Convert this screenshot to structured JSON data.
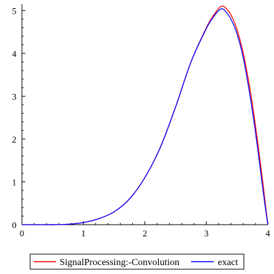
{
  "chart_data": {
    "type": "line",
    "xlim": [
      0,
      4
    ],
    "ylim": [
      0,
      5.15
    ],
    "x_ticks": [
      0,
      1,
      2,
      3,
      4
    ],
    "y_ticks": [
      0,
      1,
      2,
      3,
      4,
      5
    ],
    "x_tick_labels": [
      "0",
      "1",
      "2",
      "3",
      "4"
    ],
    "y_tick_labels": [
      "0",
      "1",
      "2",
      "3",
      "4",
      "5"
    ],
    "grid": false,
    "legend_position": "bottom",
    "series": [
      {
        "name": "SignalProcessing:-Convolution",
        "color": "#ff0000",
        "x": [
          0,
          0.25,
          0.5,
          0.75,
          1.0,
          1.25,
          1.5,
          1.75,
          2.0,
          2.25,
          2.5,
          2.75,
          3.0,
          3.1,
          3.2,
          3.25,
          3.3,
          3.4,
          3.5,
          3.6,
          3.7,
          3.8,
          3.9,
          3.95,
          4.0
        ],
        "y": [
          0,
          0.0,
          0.001,
          0.01,
          0.05,
          0.14,
          0.3,
          0.6,
          1.1,
          1.8,
          2.75,
          3.8,
          4.6,
          4.85,
          5.05,
          5.1,
          5.08,
          4.9,
          4.55,
          4.0,
          3.25,
          2.3,
          1.2,
          0.6,
          0.0
        ]
      },
      {
        "name": "exact",
        "color": "#0000ff",
        "x": [
          0,
          0.25,
          0.5,
          0.75,
          1.0,
          1.25,
          1.5,
          1.75,
          2.0,
          2.25,
          2.5,
          2.75,
          3.0,
          3.1,
          3.2,
          3.25,
          3.3,
          3.4,
          3.5,
          3.6,
          3.7,
          3.8,
          3.9,
          3.95,
          4.0
        ],
        "y": [
          0,
          0.0,
          0.001,
          0.01,
          0.05,
          0.14,
          0.3,
          0.6,
          1.1,
          1.8,
          2.75,
          3.8,
          4.58,
          4.82,
          5.0,
          5.04,
          5.0,
          4.8,
          4.45,
          3.9,
          3.1,
          2.15,
          1.05,
          0.5,
          0.0
        ]
      }
    ]
  }
}
